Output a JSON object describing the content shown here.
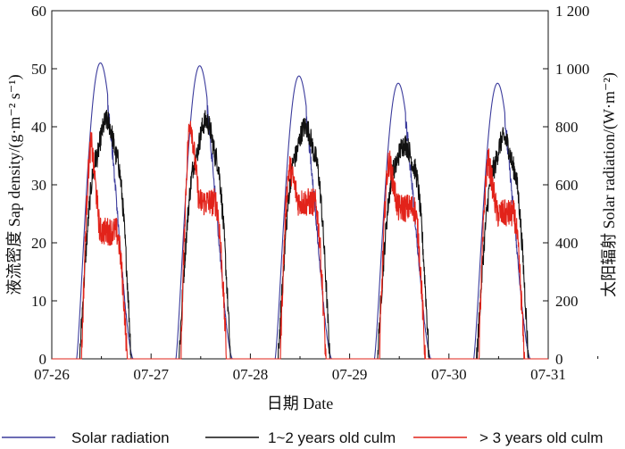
{
  "chart_data": {
    "type": "line",
    "xlabel": "日期 Date",
    "ylabel_left": "液流密度 Sap density/(g·m⁻² s⁻¹)",
    "ylabel_right": "太阳辐射 Solar radiation/(W·m⁻²)",
    "x_tick_labels": [
      "07-26",
      "07-27",
      "07-28",
      "07-29",
      "07-30",
      "07-31"
    ],
    "x_range_days": [
      0,
      5
    ],
    "y_left": {
      "range": [
        0,
        60
      ],
      "ticks": [
        0,
        10,
        20,
        30,
        40,
        50,
        60
      ],
      "tick_labels": [
        "0",
        "10",
        "20",
        "30",
        "40",
        "50",
        "60"
      ]
    },
    "y_right": {
      "range": [
        0,
        1200
      ],
      "ticks": [
        0,
        200,
        400,
        600,
        800,
        1000,
        1200
      ],
      "tick_labels": [
        "0",
        "200",
        "400",
        "600",
        "800",
        "1 000",
        "1 200"
      ]
    },
    "series": [
      {
        "name": "Solar radiation",
        "color": "#3b3b9c",
        "axis": "right",
        "daily": [
          {
            "day": 0,
            "start": 0.25,
            "end": 0.82,
            "peak": 1020,
            "peak_at": 0.54
          },
          {
            "day": 1,
            "start": 0.25,
            "end": 0.82,
            "peak": 1010,
            "peak_at": 0.55
          },
          {
            "day": 2,
            "start": 0.25,
            "end": 0.82,
            "peak": 975,
            "peak_at": 0.56
          },
          {
            "day": 3,
            "start": 0.25,
            "end": 0.82,
            "peak": 950,
            "peak_at": 0.56
          },
          {
            "day": 4,
            "start": 0.25,
            "end": 0.82,
            "peak": 950,
            "peak_at": 0.57
          }
        ]
      },
      {
        "name": "1~2 years old culm",
        "color": "#111111",
        "axis": "left",
        "daily": [
          {
            "day": 0,
            "start": 0.28,
            "end": 0.8,
            "plateau": 35,
            "peak": 41
          },
          {
            "day": 1,
            "start": 0.28,
            "end": 0.8,
            "plateau": 35,
            "peak": 41
          },
          {
            "day": 2,
            "start": 0.28,
            "end": 0.8,
            "plateau": 35,
            "peak": 40
          },
          {
            "day": 3,
            "start": 0.28,
            "end": 0.8,
            "plateau": 33,
            "peak": 37
          },
          {
            "day": 4,
            "start": 0.28,
            "end": 0.8,
            "plateau": 33,
            "peak": 38
          }
        ]
      },
      {
        "name": "> 3 years old culm",
        "color": "#e2231a",
        "axis": "left",
        "daily": [
          {
            "day": 0,
            "start": 0.3,
            "end": 0.76,
            "peak": 37,
            "plateau": 22
          },
          {
            "day": 1,
            "start": 0.3,
            "end": 0.76,
            "peak": 41,
            "plateau": 27
          },
          {
            "day": 2,
            "start": 0.3,
            "end": 0.76,
            "peak": 33,
            "plateau": 27
          },
          {
            "day": 3,
            "start": 0.3,
            "end": 0.76,
            "peak": 34,
            "plateau": 26
          },
          {
            "day": 4,
            "start": 0.3,
            "end": 0.76,
            "peak": 34,
            "plateau": 25
          }
        ]
      }
    ],
    "legend": [
      "Solar radiation",
      "1~2 years old culm",
      "> 3 years old culm"
    ],
    "legend_position": "bottom"
  }
}
